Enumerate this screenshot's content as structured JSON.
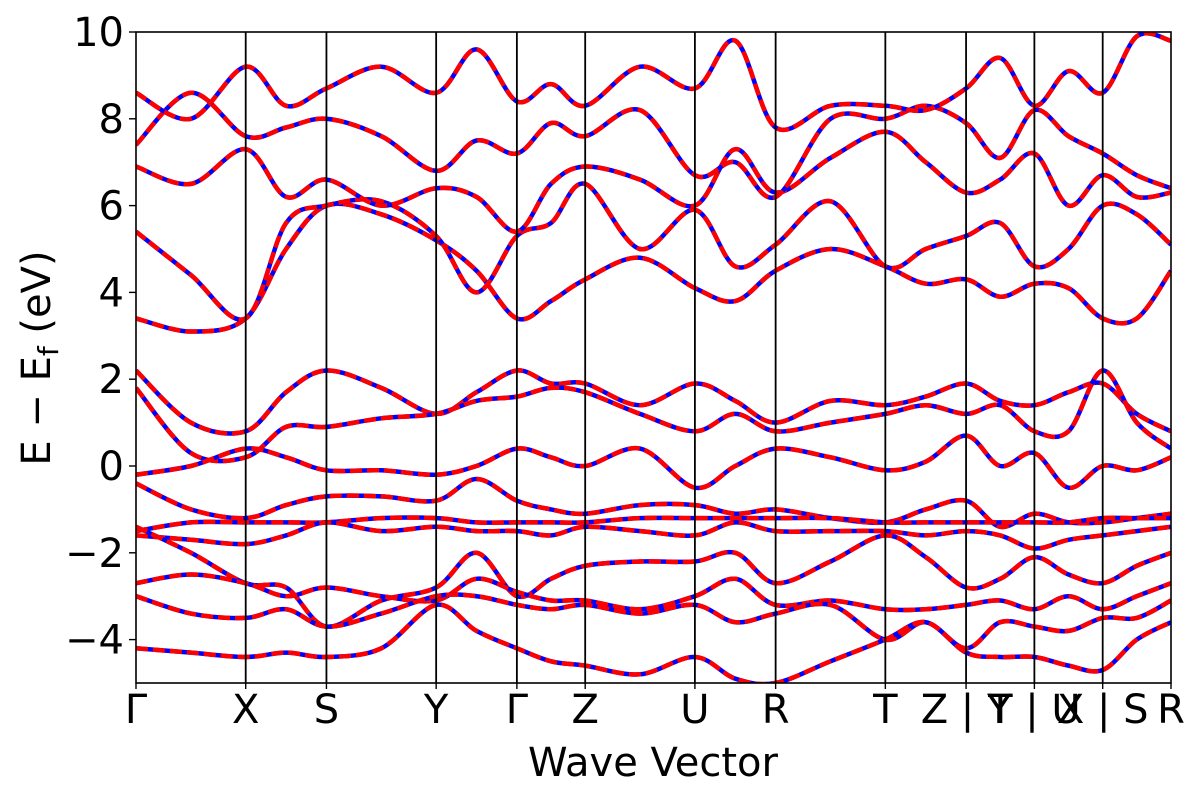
{
  "chart_data": {
    "type": "line",
    "title": "",
    "xlabel": "Wave Vector",
    "ylabel": "E  −  E",
    "ylabel_subscript": "f",
    "ylabel_unit": " (eV)",
    "ylim": [
      -5,
      10
    ],
    "yticks": [
      {
        "value": 10,
        "label": "10"
      },
      {
        "value": 8,
        "label": "8"
      },
      {
        "value": 6,
        "label": "6"
      },
      {
        "value": 4,
        "label": "4"
      },
      {
        "value": 2,
        "label": "2"
      },
      {
        "value": 0,
        "label": "0"
      },
      {
        "value": -2,
        "label": "−2"
      },
      {
        "value": -4,
        "label": "−4"
      }
    ],
    "kpath": [
      {
        "label": "Γ",
        "x": 0.0
      },
      {
        "label": "X",
        "x": 0.106
      },
      {
        "label": "S",
        "x": 0.184
      },
      {
        "label": "Y",
        "x": 0.29
      },
      {
        "label": "Γ",
        "x": 0.368
      },
      {
        "label": "Z",
        "x": 0.434
      },
      {
        "label": "U",
        "x": 0.54
      },
      {
        "label": "R",
        "x": 0.618
      },
      {
        "label": "T",
        "x": 0.724
      },
      {
        "label": "Z | Y",
        "x": 0.802
      },
      {
        "label": "T | U",
        "x": 0.868
      },
      {
        "label": "X | S",
        "x": 0.934
      },
      {
        "label": "R",
        "x": 1.0
      }
    ],
    "colors": {
      "dft": "#0000ff",
      "model": "#ff0000"
    },
    "series": [
      {
        "x": [
          0,
          0.053,
          0.106,
          0.145,
          0.184,
          0.237,
          0.29,
          0.329,
          0.368,
          0.401,
          0.434,
          0.487,
          0.54,
          0.579,
          0.618,
          0.671,
          0.724,
          0.763,
          0.802,
          0.835,
          0.868,
          0.901,
          0.934,
          0.967,
          1.0
        ],
        "y": [
          3.4,
          3.1,
          3.4,
          5.0,
          6.0,
          5.8,
          5.2,
          4.5,
          3.4,
          3.8,
          4.3,
          4.8,
          4.1,
          3.8,
          4.5,
          5.0,
          4.6,
          4.2,
          4.3,
          3.9,
          4.2,
          4.1,
          3.4,
          3.4,
          4.5
        ]
      },
      {
        "x": [
          0,
          0.053,
          0.106,
          0.145,
          0.184,
          0.237,
          0.29,
          0.329,
          0.368,
          0.401,
          0.434,
          0.487,
          0.54,
          0.579,
          0.618,
          0.671,
          0.724,
          0.763,
          0.802,
          0.835,
          0.868,
          0.901,
          0.934,
          0.967,
          1.0
        ],
        "y": [
          5.4,
          4.4,
          3.4,
          5.6,
          6.0,
          6.1,
          5.3,
          4.0,
          5.3,
          5.6,
          6.5,
          5.0,
          5.9,
          4.6,
          5.1,
          6.1,
          4.6,
          5.0,
          5.3,
          5.6,
          4.6,
          5.0,
          6.0,
          5.8,
          5.1
        ]
      },
      {
        "x": [
          0,
          0.053,
          0.106,
          0.145,
          0.184,
          0.237,
          0.29,
          0.329,
          0.368,
          0.401,
          0.434,
          0.487,
          0.54,
          0.579,
          0.618,
          0.671,
          0.724,
          0.763,
          0.802,
          0.835,
          0.868,
          0.901,
          0.934,
          0.967,
          1.0
        ],
        "y": [
          6.9,
          6.5,
          7.3,
          6.2,
          6.6,
          6.0,
          6.4,
          6.2,
          5.4,
          6.5,
          6.9,
          6.6,
          6.0,
          7.3,
          6.3,
          7.1,
          7.7,
          7.0,
          6.3,
          6.6,
          7.2,
          6.0,
          6.7,
          6.2,
          6.3
        ]
      },
      {
        "x": [
          0,
          0.053,
          0.106,
          0.145,
          0.184,
          0.237,
          0.29,
          0.329,
          0.368,
          0.401,
          0.434,
          0.487,
          0.54,
          0.579,
          0.618,
          0.671,
          0.724,
          0.763,
          0.802,
          0.835,
          0.868,
          0.901,
          0.934,
          0.967,
          1.0
        ],
        "y": [
          7.4,
          8.6,
          7.6,
          7.8,
          8.0,
          7.6,
          6.8,
          7.5,
          7.2,
          7.9,
          7.6,
          8.2,
          6.7,
          7.0,
          6.2,
          8.0,
          8.0,
          8.3,
          7.9,
          7.1,
          8.2,
          7.6,
          7.2,
          6.7,
          6.4
        ]
      },
      {
        "x": [
          0,
          0.053,
          0.106,
          0.145,
          0.184,
          0.237,
          0.29,
          0.329,
          0.368,
          0.401,
          0.434,
          0.487,
          0.54,
          0.579,
          0.618,
          0.671,
          0.724,
          0.763,
          0.802,
          0.835,
          0.868,
          0.901,
          0.934,
          0.967,
          1.0
        ],
        "y": [
          8.6,
          8.0,
          9.2,
          8.3,
          8.7,
          9.2,
          8.6,
          9.6,
          8.4,
          8.8,
          8.3,
          9.2,
          8.7,
          9.8,
          7.8,
          8.3,
          8.3,
          8.2,
          8.7,
          9.4,
          8.3,
          9.1,
          8.6,
          9.9,
          9.8
        ]
      },
      {
        "x": [
          0,
          0.053,
          0.106,
          0.145,
          0.184,
          0.237,
          0.29,
          0.329,
          0.368,
          0.401,
          0.434,
          0.487,
          0.54,
          0.579,
          0.618,
          0.671,
          0.724,
          0.763,
          0.802,
          0.835,
          0.868,
          0.901,
          0.934,
          0.967,
          1.0
        ],
        "y": [
          2.2,
          1.0,
          0.8,
          1.7,
          2.2,
          1.8,
          1.2,
          1.7,
          2.2,
          1.9,
          1.9,
          1.4,
          1.9,
          1.5,
          1.0,
          1.5,
          1.4,
          1.6,
          1.9,
          1.5,
          1.4,
          1.7,
          1.9,
          1.2,
          0.8
        ]
      },
      {
        "x": [
          0,
          0.053,
          0.106,
          0.145,
          0.184,
          0.237,
          0.29,
          0.329,
          0.368,
          0.401,
          0.434,
          0.487,
          0.54,
          0.579,
          0.618,
          0.671,
          0.724,
          0.763,
          0.802,
          0.835,
          0.868,
          0.901,
          0.934,
          0.967,
          1.0
        ],
        "y": [
          1.8,
          0.3,
          0.2,
          0.9,
          0.9,
          1.1,
          1.2,
          1.5,
          1.6,
          1.8,
          1.7,
          1.2,
          0.8,
          1.2,
          0.8,
          1.0,
          1.2,
          1.4,
          1.2,
          1.4,
          0.8,
          0.8,
          2.2,
          1.0,
          0.4
        ]
      },
      {
        "x": [
          0,
          0.053,
          0.106,
          0.145,
          0.184,
          0.237,
          0.29,
          0.329,
          0.368,
          0.401,
          0.434,
          0.487,
          0.54,
          0.579,
          0.618,
          0.671,
          0.724,
          0.763,
          0.802,
          0.835,
          0.868,
          0.901,
          0.934,
          0.967,
          1.0
        ],
        "y": [
          -0.2,
          0.0,
          0.4,
          0.2,
          -0.1,
          -0.1,
          -0.2,
          0.0,
          0.4,
          0.2,
          0.0,
          0.4,
          -0.5,
          0.0,
          0.4,
          0.2,
          -0.1,
          0.1,
          0.7,
          0.0,
          0.3,
          -0.5,
          0.0,
          -0.1,
          0.2
        ]
      },
      {
        "x": [
          0,
          0.053,
          0.106,
          0.145,
          0.184,
          0.237,
          0.29,
          0.329,
          0.368,
          0.401,
          0.434,
          0.487,
          0.54,
          0.579,
          0.618,
          0.671,
          0.724,
          0.763,
          0.802,
          0.835,
          0.868,
          0.901,
          0.934,
          0.967,
          1.0
        ],
        "y": [
          -0.4,
          -1.0,
          -1.2,
          -0.9,
          -0.7,
          -0.7,
          -0.8,
          -0.3,
          -0.8,
          -1.0,
          -1.1,
          -0.9,
          -0.9,
          -1.1,
          -1.0,
          -1.2,
          -1.3,
          -1.0,
          -0.8,
          -1.4,
          -1.1,
          -1.3,
          -1.3,
          -1.2,
          -1.1
        ]
      },
      {
        "x": [
          0,
          0.053,
          0.106,
          0.145,
          0.184,
          0.237,
          0.29,
          0.329,
          0.368,
          0.401,
          0.434,
          0.487,
          0.54,
          0.579,
          0.618,
          0.671,
          0.724,
          0.763,
          0.802,
          0.835,
          0.868,
          0.901,
          0.934,
          0.967,
          1.0
        ],
        "y": [
          -1.5,
          -1.3,
          -1.3,
          -1.3,
          -1.3,
          -1.2,
          -1.2,
          -1.3,
          -1.3,
          -1.3,
          -1.3,
          -1.2,
          -1.2,
          -1.2,
          -1.2,
          -1.2,
          -1.3,
          -1.3,
          -1.3,
          -1.3,
          -1.3,
          -1.3,
          -1.2,
          -1.2,
          -1.2
        ]
      },
      {
        "x": [
          0,
          0.053,
          0.106,
          0.145,
          0.184,
          0.237,
          0.29,
          0.329,
          0.368,
          0.401,
          0.434,
          0.487,
          0.54,
          0.579,
          0.618,
          0.671,
          0.724,
          0.763,
          0.802,
          0.835,
          0.868,
          0.901,
          0.934,
          0.967,
          1.0
        ],
        "y": [
          -1.6,
          -1.7,
          -1.8,
          -1.6,
          -1.3,
          -1.5,
          -1.4,
          -1.5,
          -1.5,
          -1.6,
          -1.4,
          -1.5,
          -1.6,
          -1.3,
          -1.5,
          -1.5,
          -1.5,
          -1.6,
          -1.5,
          -1.6,
          -1.9,
          -1.7,
          -1.6,
          -1.5,
          -1.4
        ]
      },
      {
        "x": [
          0,
          0.053,
          0.106,
          0.145,
          0.184,
          0.237,
          0.29,
          0.329,
          0.368,
          0.401,
          0.434,
          0.487,
          0.54,
          0.579,
          0.618,
          0.671,
          0.724,
          0.763,
          0.802,
          0.835,
          0.868,
          0.901,
          0.934,
          0.967,
          1.0
        ],
        "y": [
          -1.4,
          -2.0,
          -2.7,
          -2.8,
          -3.7,
          -3.1,
          -2.8,
          -2.0,
          -3.0,
          -2.6,
          -2.3,
          -2.2,
          -2.2,
          -2.0,
          -2.7,
          -2.2,
          -1.6,
          -2.1,
          -2.8,
          -2.6,
          -2.1,
          -2.5,
          -2.7,
          -2.3,
          -2.0
        ]
      },
      {
        "x": [
          0,
          0.053,
          0.106,
          0.145,
          0.184,
          0.237,
          0.29,
          0.329,
          0.368,
          0.401,
          0.434,
          0.487,
          0.54,
          0.579,
          0.618,
          0.671,
          0.724,
          0.763,
          0.802,
          0.835,
          0.868,
          0.901,
          0.934,
          0.967,
          1.0
        ],
        "y": [
          -2.7,
          -2.5,
          -2.7,
          -3.0,
          -2.8,
          -3.0,
          -3.1,
          -2.6,
          -2.9,
          -3.1,
          -3.1,
          -3.3,
          -3.0,
          -2.6,
          -3.2,
          -3.1,
          -3.3,
          -3.3,
          -3.2,
          -3.1,
          -3.3,
          -3.0,
          -3.3,
          -3.0,
          -2.7
        ]
      },
      {
        "x": [
          0,
          0.053,
          0.106,
          0.145,
          0.184,
          0.237,
          0.29,
          0.329,
          0.368,
          0.401,
          0.434,
          0.487,
          0.54,
          0.579,
          0.618,
          0.671,
          0.724,
          0.763,
          0.802,
          0.835,
          0.868,
          0.901,
          0.934,
          0.967,
          1.0
        ],
        "y": [
          -3.0,
          -3.4,
          -3.5,
          -3.3,
          -3.7,
          -3.4,
          -3.0,
          -3.0,
          -3.2,
          -3.3,
          -3.2,
          -3.4,
          -3.2,
          -3.6,
          -3.4,
          -3.2,
          -4.0,
          -3.6,
          -4.2,
          -3.6,
          -3.7,
          -3.8,
          -3.5,
          -3.5,
          -3.1
        ]
      },
      {
        "x": [
          0,
          0.053,
          0.106,
          0.145,
          0.184,
          0.237,
          0.29,
          0.329,
          0.368,
          0.401,
          0.434,
          0.487,
          0.54,
          0.579,
          0.618,
          0.671,
          0.724,
          0.763,
          0.802,
          0.835,
          0.868,
          0.901,
          0.934,
          0.967,
          1.0
        ],
        "y": [
          -4.2,
          -4.3,
          -4.4,
          -4.3,
          -4.4,
          -4.2,
          -3.2,
          -3.8,
          -4.2,
          -4.5,
          -4.6,
          -4.8,
          -4.4,
          -4.9,
          -5.0,
          -4.5,
          -4.0,
          -3.6,
          -4.3,
          -4.4,
          -4.4,
          -4.6,
          -4.7,
          -4.0,
          -3.6
        ]
      }
    ]
  }
}
